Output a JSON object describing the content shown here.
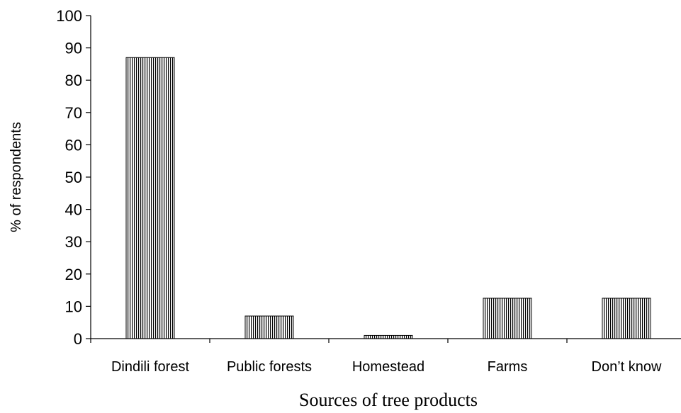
{
  "chart_data": {
    "type": "bar",
    "categories": [
      "Dindili forest",
      "Public forests",
      "Homestead",
      "Farms",
      "Don’t know"
    ],
    "values": [
      87,
      7,
      1,
      12.5,
      12.5
    ],
    "xlabel": "Sources of tree products",
    "ylabel": "% of respondents",
    "ylim": [
      0,
      100
    ],
    "yticks": [
      0,
      10,
      20,
      30,
      40,
      50,
      60,
      70,
      80,
      90,
      100
    ],
    "grid": false,
    "bar_fill": "vertical-hatch",
    "colors": {
      "bar_stroke": "#000000",
      "hatch": "#000000",
      "background": "#ffffff"
    }
  }
}
